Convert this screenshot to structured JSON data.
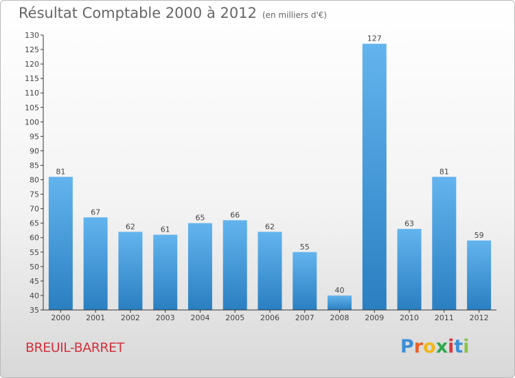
{
  "header": {
    "title": "Résultat Comptable 2000 à 2012",
    "subtitle": "(en milliers d'€)"
  },
  "location": "BREUIL-BARRET",
  "logo": {
    "letters": [
      "P",
      "r",
      "o",
      "x",
      "i",
      "t",
      "i"
    ],
    "colors": [
      "#3b8fd8",
      "#e8622a",
      "#f2b619",
      "#2fa84f",
      "#d8383f",
      "#3b8fd8",
      "#8bc34a"
    ]
  },
  "colors": {
    "bar_light": "#63b4ee",
    "bar_dark": "#2a7fc1",
    "axis": "#333333"
  },
  "chart_data": {
    "type": "bar",
    "categories": [
      "2000",
      "2001",
      "2002",
      "2003",
      "2004",
      "2005",
      "2006",
      "2007",
      "2008",
      "2009",
      "2010",
      "2011",
      "2012"
    ],
    "values": [
      81,
      67,
      62,
      61,
      65,
      66,
      62,
      55,
      40,
      127,
      63,
      81,
      59
    ],
    "ylim": [
      35,
      130
    ],
    "yticks": [
      35,
      40,
      45,
      50,
      55,
      60,
      65,
      70,
      75,
      80,
      85,
      90,
      95,
      100,
      105,
      110,
      115,
      120,
      125,
      130
    ],
    "grid": false
  }
}
